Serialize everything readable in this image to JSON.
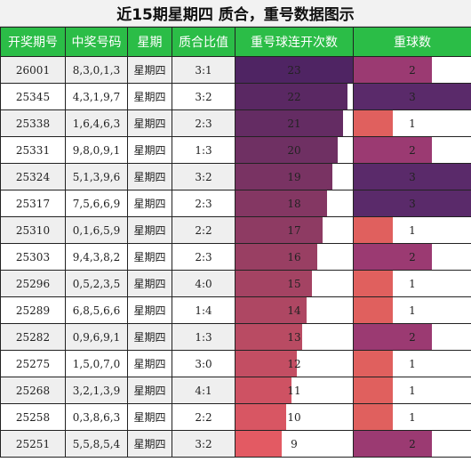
{
  "title": "近15期星期四 质合，重号数据图示",
  "headers": [
    "开奖期号",
    "中奖号码",
    "星期",
    "质合比值",
    "重号球连开次数",
    "重球数"
  ],
  "chart_data": {
    "type": "table",
    "columns": [
      "开奖期号",
      "中奖号码",
      "星期",
      "质合比值",
      "重号球连开次数",
      "重球数"
    ],
    "rows": [
      {
        "issue": "26001",
        "numbers": "8,3,0,1,3",
        "weekday": "星期四",
        "ratio": "3:1",
        "streak": 23,
        "repeat": 2
      },
      {
        "issue": "25345",
        "numbers": "4,3,1,9,7",
        "weekday": "星期四",
        "ratio": "3:2",
        "streak": 22,
        "repeat": 3
      },
      {
        "issue": "25338",
        "numbers": "1,6,4,6,3",
        "weekday": "星期四",
        "ratio": "2:3",
        "streak": 21,
        "repeat": 1
      },
      {
        "issue": "25331",
        "numbers": "9,8,0,9,1",
        "weekday": "星期四",
        "ratio": "1:3",
        "streak": 20,
        "repeat": 2
      },
      {
        "issue": "25324",
        "numbers": "5,1,3,9,6",
        "weekday": "星期四",
        "ratio": "3:2",
        "streak": 19,
        "repeat": 3
      },
      {
        "issue": "25317",
        "numbers": "7,5,6,6,9",
        "weekday": "星期四",
        "ratio": "2:3",
        "streak": 18,
        "repeat": 3
      },
      {
        "issue": "25310",
        "numbers": "0,1,6,5,9",
        "weekday": "星期四",
        "ratio": "2:2",
        "streak": 17,
        "repeat": 1
      },
      {
        "issue": "25303",
        "numbers": "9,4,3,8,2",
        "weekday": "星期四",
        "ratio": "2:3",
        "streak": 16,
        "repeat": 2
      },
      {
        "issue": "25296",
        "numbers": "0,5,2,3,5",
        "weekday": "星期四",
        "ratio": "4:0",
        "streak": 15,
        "repeat": 1
      },
      {
        "issue": "25289",
        "numbers": "6,8,5,6,6",
        "weekday": "星期四",
        "ratio": "1:4",
        "streak": 14,
        "repeat": 1
      },
      {
        "issue": "25282",
        "numbers": "0,9,6,9,1",
        "weekday": "星期四",
        "ratio": "1:3",
        "streak": 13,
        "repeat": 2
      },
      {
        "issue": "25275",
        "numbers": "1,5,0,7,0",
        "weekday": "星期四",
        "ratio": "3:0",
        "streak": 12,
        "repeat": 1
      },
      {
        "issue": "25268",
        "numbers": "3,2,1,3,9",
        "weekday": "星期四",
        "ratio": "4:1",
        "streak": 11,
        "repeat": 1
      },
      {
        "issue": "25258",
        "numbers": "0,3,8,6,3",
        "weekday": "星期四",
        "ratio": "2:2",
        "streak": 10,
        "repeat": 1
      },
      {
        "issue": "25251",
        "numbers": "5,5,8,5,4",
        "weekday": "星期四",
        "ratio": "3:2",
        "streak": 9,
        "repeat": 2
      }
    ],
    "streak_max": 23,
    "repeat_max": 3,
    "colors": {
      "header_bg": "#2bbd47",
      "repeat_1": "#e0605e",
      "repeat_2": "#9b3a72",
      "repeat_3": "#5a2a6a",
      "streak_high": "#4f2463",
      "streak_low": "#e35a63"
    }
  }
}
